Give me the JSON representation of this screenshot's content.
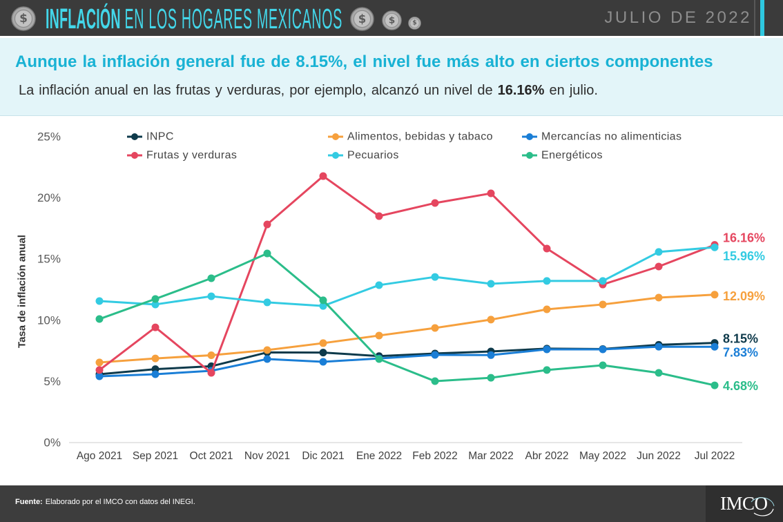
{
  "theme": {
    "header_bg": "#3b3b3b",
    "title": "#43d7ea",
    "accent": "#2ec8e0",
    "headline": "#19b2d4",
    "band_bg": "#e3f5f9",
    "footer_bg": "#3d3d3d"
  },
  "header": {
    "title_bold": "INFLACIÓN",
    "title_rest": "EN LOS HOGARES MEXICANOS",
    "date": "JULIO DE 2022",
    "coin_icon": "dollar-coin-icon",
    "coin_symbol": "$"
  },
  "summary": {
    "headline": "Aunque la inflación general fue de 8.15%, el nivel fue más alto en ciertos componentes",
    "body_before": "La inflación anual en las frutas y verduras, por ejemplo, alcanzó un nivel de",
    "body_highlight": "16.16%",
    "body_after": "en julio."
  },
  "chart_data": {
    "type": "line",
    "categories": [
      "Ago 2021",
      "Sep 2021",
      "Oct 2021",
      "Nov 2021",
      "Dic 2021",
      "Ene 2022",
      "Feb 2022",
      "Mar 2022",
      "Abr 2022",
      "May 2022",
      "Jun 2022",
      "Jul 2022"
    ],
    "ylabel": "Tasa de inflación anual",
    "ylim": [
      0,
      25
    ],
    "y_tick_values": [
      0,
      5,
      10,
      15,
      20,
      25
    ],
    "y_tick_labels": [
      "0%",
      "5%",
      "10%",
      "15%",
      "20%",
      "25%"
    ],
    "grid": false,
    "legend_position": "top",
    "series": [
      {
        "name": "INPC",
        "color": "#0e3a4b",
        "values": [
          5.59,
          6.0,
          6.24,
          7.37,
          7.36,
          7.07,
          7.28,
          7.45,
          7.68,
          7.65,
          7.99,
          8.15
        ],
        "end_label": "8.15%"
      },
      {
        "name": "Alimentos, bebidas y tabaco",
        "color": "#f6a03d",
        "values": [
          6.55,
          6.88,
          7.14,
          7.56,
          8.13,
          8.75,
          9.37,
          10.05,
          10.89,
          11.29,
          11.85,
          12.09
        ],
        "end_label": "12.09%"
      },
      {
        "name": "Mercancías no alimenticias",
        "color": "#1a7ed6",
        "values": [
          5.42,
          5.59,
          5.87,
          6.83,
          6.6,
          6.88,
          7.17,
          7.15,
          7.62,
          7.62,
          7.84,
          7.83
        ],
        "end_label": "7.83%"
      },
      {
        "name": "Frutas y verduras",
        "color": "#e5465f",
        "values": [
          5.93,
          9.42,
          5.7,
          17.83,
          21.78,
          18.51,
          19.58,
          20.37,
          15.86,
          12.92,
          14.39,
          16.16
        ],
        "end_label": "16.16%"
      },
      {
        "name": "Pecuarios",
        "color": "#33cbe2",
        "values": [
          11.57,
          11.29,
          11.96,
          11.46,
          11.17,
          12.87,
          13.54,
          12.98,
          13.21,
          13.21,
          15.58,
          15.96
        ],
        "end_label": "15.96%"
      },
      {
        "name": "Energéticos",
        "color": "#2bbd8a",
        "values": [
          10.1,
          11.74,
          13.43,
          15.46,
          11.63,
          6.83,
          5.02,
          5.3,
          5.93,
          6.32,
          5.7,
          4.68
        ],
        "end_label": "4.68%"
      }
    ]
  },
  "footer": {
    "source_label": "Fuente:",
    "source_text": "Elaborado por el IMCO con datos del INEGI.",
    "logo": "IMCO"
  }
}
